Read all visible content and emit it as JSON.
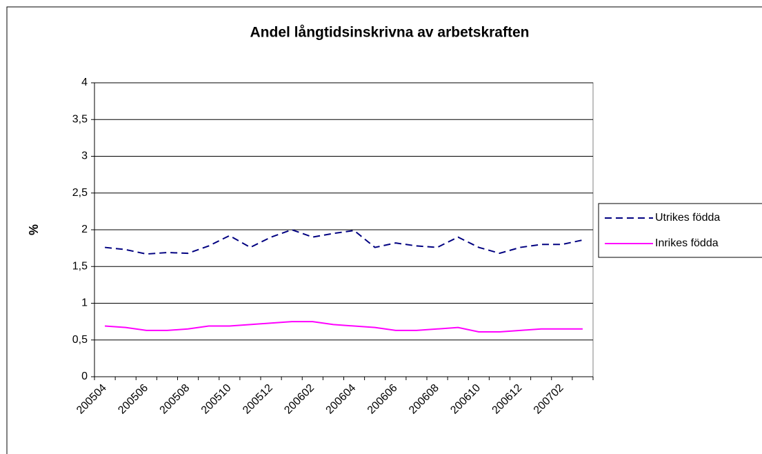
{
  "chart_data": {
    "type": "line",
    "title": "Andel långtidsinskrivna av arbetskraften",
    "y_label": "%",
    "categories": [
      "200504",
      null,
      "200506",
      null,
      "200508",
      null,
      "200510",
      null,
      "200512",
      null,
      "200602",
      null,
      "200604",
      null,
      "200606",
      null,
      "200608",
      null,
      "200610",
      null,
      "200612",
      null,
      "200702",
      null
    ],
    "series": [
      {
        "name": "Utrikes födda",
        "color": "#000080",
        "dash": true,
        "values": [
          1.76,
          1.73,
          1.67,
          1.69,
          1.68,
          1.78,
          1.92,
          1.76,
          1.9,
          2.0,
          1.9,
          1.95,
          1.99,
          1.76,
          1.82,
          1.78,
          1.76,
          1.9,
          1.76,
          1.68,
          1.76,
          1.8,
          1.8,
          1.86
        ]
      },
      {
        "name": "Inrikes födda",
        "color": "#ff00ff",
        "dash": false,
        "values": [
          0.69,
          0.67,
          0.63,
          0.63,
          0.65,
          0.69,
          0.69,
          0.71,
          0.73,
          0.75,
          0.75,
          0.71,
          0.69,
          0.67,
          0.63,
          0.63,
          0.65,
          0.67,
          0.61,
          0.61,
          0.63,
          0.65,
          0.65,
          0.65
        ]
      }
    ],
    "ylim": [
      0,
      4
    ],
    "yticks": [
      0,
      {
        "value": 0.5,
        "label": "0,5"
      },
      1,
      {
        "value": 1.5,
        "label": "1,5"
      },
      2,
      {
        "value": 2.5,
        "label": "2,5"
      },
      3,
      {
        "value": 3.5,
        "label": "3,5"
      },
      4
    ],
    "grid": true,
    "legend": "right"
  }
}
